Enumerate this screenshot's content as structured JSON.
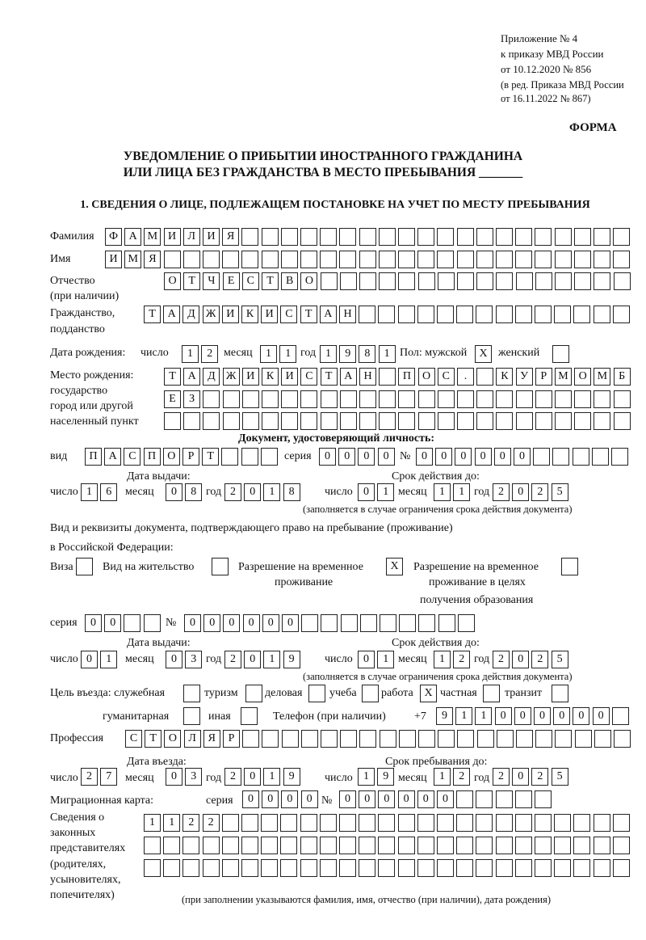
{
  "header": {
    "line1": "Приложение № 4",
    "line2": "к приказу МВД России",
    "line3": "от 10.12.2020 № 856",
    "line4": "(в ред. Приказа МВД России",
    "line5": "от 16.11.2022 № 867)",
    "forma": "ФОРМА"
  },
  "title": {
    "line1": "УВЕДОМЛЕНИЕ О ПРИБЫТИИ ИНОСТРАННОГО ГРАЖДАНИНА",
    "line2": "ИЛИ ЛИЦА БЕЗ ГРАЖДАНСТВА В МЕСТО ПРЕБЫВАНИЯ _______"
  },
  "section1": "1. СВЕДЕНИЯ О ЛИЦЕ, ПОДЛЕЖАЩЕМ ПОСТАНОВКЕ НА УЧЕТ ПО МЕСТУ ПРЕБЫВАНИЯ",
  "labels": {
    "surname": "Фамилия",
    "name": "Имя",
    "patronymic": "Отчество",
    "patronymic2": "(при наличии)",
    "citizenship": "Гражданство,",
    "citizenship2": "подданство",
    "birth_date": "Дата рождения:",
    "day": "число",
    "month": "месяц",
    "year": "год",
    "sex": "Пол: мужской",
    "female": "женский",
    "birthplace": "Место рождения:",
    "bp2": "государство",
    "bp3": "город или другой",
    "bp4": "населенный пункт",
    "id_doc": "Документ, удостоверяющий личность:",
    "kind": "вид",
    "series": "серия",
    "number": "№",
    "issue_date": "Дата выдачи:",
    "valid_until": "Срок действия до:",
    "valid_note": "(заполняется в случае ограничения срока действия документа)",
    "right_doc1": "Вид и реквизиты документа, подтверждающего право на пребывание (проживание)",
    "right_doc2": "в Российской Федерации:",
    "visa": "Виза",
    "residence": "Вид на жительство",
    "trp1": "Разрешение на временное",
    "trp2": "проживание",
    "trpe1": "Разрешение на временное",
    "trpe2": "проживание в целях",
    "trpe3": "получения образования",
    "purpose": "Цель въезда: служебная",
    "tourism": "туризм",
    "business": "деловая",
    "study": "учеба",
    "work": "работа",
    "private": "частная",
    "transit": "транзит",
    "humanitarian": "гуманитарная",
    "other": "иная",
    "phone": "Телефон (при наличии)",
    "phone_prefix": "+7",
    "profession": "Профессия",
    "entry_date": "Дата въезда:",
    "stay_until": "Срок пребывания до:",
    "migration_card": "Миграционная карта:",
    "rep1": "Сведения о",
    "rep2": "законных",
    "rep3": "представителях",
    "rep4": "(родителях,",
    "rep5": "усыновителях,",
    "rep6": "попечителях)",
    "rep_note": "(при заполнении указываются фамилия, имя, отчество (при наличии), дата рождения)"
  },
  "fields": {
    "surname": [
      "Ф",
      "А",
      "М",
      "И",
      "Л",
      "И",
      "Я",
      "",
      "",
      "",
      "",
      "",
      "",
      "",
      "",
      "",
      "",
      "",
      "",
      "",
      "",
      "",
      "",
      "",
      "",
      "",
      ""
    ],
    "name": [
      "И",
      "М",
      "Я",
      "",
      "",
      "",
      "",
      "",
      "",
      "",
      "",
      "",
      "",
      "",
      "",
      "",
      "",
      "",
      "",
      "",
      "",
      "",
      "",
      "",
      "",
      "",
      ""
    ],
    "patronymic": [
      "О",
      "Т",
      "Ч",
      "Е",
      "С",
      "Т",
      "В",
      "О",
      "",
      "",
      "",
      "",
      "",
      "",
      "",
      "",
      "",
      "",
      "",
      "",
      "",
      "",
      "",
      ""
    ],
    "citizenship": [
      "Т",
      "А",
      "Д",
      "Ж",
      "И",
      "К",
      "И",
      "С",
      "Т",
      "А",
      "Н",
      "",
      "",
      "",
      "",
      "",
      "",
      "",
      "",
      "",
      "",
      "",
      "",
      "",
      ""
    ],
    "birth_day": [
      "1",
      "2"
    ],
    "birth_month": [
      "1",
      "1"
    ],
    "birth_year": [
      "1",
      "9",
      "8",
      "1"
    ],
    "sex_male": [
      "X"
    ],
    "sex_female": [
      ""
    ],
    "birthplace1": [
      "Т",
      "А",
      "Д",
      "Ж",
      "И",
      "К",
      "И",
      "С",
      "Т",
      "А",
      "Н",
      "",
      "П",
      "О",
      "С",
      ".",
      "",
      "К",
      "У",
      "Р",
      "М",
      "О",
      "М",
      "Б"
    ],
    "birthplace2": [
      "Е",
      "З",
      "",
      "",
      "",
      "",
      "",
      "",
      "",
      "",
      "",
      "",
      "",
      "",
      "",
      "",
      "",
      "",
      "",
      "",
      "",
      "",
      "",
      ""
    ],
    "birthplace3": [
      "",
      "",
      "",
      "",
      "",
      "",
      "",
      "",
      "",
      "",
      "",
      "",
      "",
      "",
      "",
      "",
      "",
      "",
      "",
      "",
      "",
      "",
      "",
      ""
    ],
    "doc_kind": [
      "П",
      "А",
      "С",
      "П",
      "О",
      "Р",
      "Т",
      "",
      "",
      ""
    ],
    "doc_series": [
      "0",
      "0",
      "0",
      "0"
    ],
    "doc_number": [
      "0",
      "0",
      "0",
      "0",
      "0",
      "0",
      "",
      "",
      "",
      "",
      ""
    ],
    "doc_issue_day": [
      "1",
      "6"
    ],
    "doc_issue_month": [
      "0",
      "8"
    ],
    "doc_issue_year": [
      "2",
      "0",
      "1",
      "8"
    ],
    "doc_valid_day": [
      "0",
      "1"
    ],
    "doc_valid_month": [
      "1",
      "1"
    ],
    "doc_valid_year": [
      "2",
      "0",
      "2",
      "5"
    ],
    "visa": [
      ""
    ],
    "residence": [
      ""
    ],
    "trp": [
      "X"
    ],
    "trpe": [
      ""
    ],
    "right_series": [
      "0",
      "0",
      "",
      ""
    ],
    "right_number": [
      "0",
      "0",
      "0",
      "0",
      "0",
      "0",
      "",
      "",
      "",
      "",
      "",
      "",
      "",
      "",
      ""
    ],
    "right_issue_day": [
      "0",
      "1"
    ],
    "right_issue_month": [
      "0",
      "3"
    ],
    "right_issue_year": [
      "2",
      "0",
      "1",
      "9"
    ],
    "right_valid_day": [
      "0",
      "1"
    ],
    "right_valid_month": [
      "1",
      "2"
    ],
    "right_valid_year": [
      "2",
      "0",
      "2",
      "5"
    ],
    "p_service": [
      ""
    ],
    "p_tourism": [
      ""
    ],
    "p_business": [
      ""
    ],
    "p_study": [
      ""
    ],
    "p_work": [
      "X"
    ],
    "p_private": [
      ""
    ],
    "p_transit": [
      ""
    ],
    "p_humanitarian": [
      ""
    ],
    "p_other": [
      ""
    ],
    "phone": [
      "9",
      "1",
      "1",
      "0",
      "0",
      "0",
      "0",
      "0",
      "0",
      ""
    ],
    "profession": [
      "С",
      "Т",
      "О",
      "Л",
      "Я",
      "Р",
      "",
      "",
      "",
      "",
      "",
      "",
      "",
      "",
      "",
      "",
      "",
      "",
      "",
      "",
      "",
      "",
      "",
      "",
      "",
      ""
    ],
    "entry_day": [
      "2",
      "7"
    ],
    "entry_month": [
      "0",
      "3"
    ],
    "entry_year": [
      "2",
      "0",
      "1",
      "9"
    ],
    "stay_day": [
      "1",
      "9"
    ],
    "stay_month": [
      "1",
      "2"
    ],
    "stay_year": [
      "2",
      "0",
      "2",
      "5"
    ],
    "mc_series": [
      "0",
      "0",
      "0",
      "0"
    ],
    "mc_number": [
      "0",
      "0",
      "0",
      "0",
      "0",
      "0",
      "",
      "",
      "",
      "",
      ""
    ],
    "rep1": [
      "1",
      "1",
      "2",
      "2",
      "",
      "",
      "",
      "",
      "",
      "",
      "",
      "",
      "",
      "",
      "",
      "",
      "",
      "",
      "",
      "",
      "",
      "",
      "",
      "",
      ""
    ],
    "rep2": [
      "",
      "",
      "",
      "",
      "",
      "",
      "",
      "",
      "",
      "",
      "",
      "",
      "",
      "",
      "",
      "",
      "",
      "",
      "",
      "",
      "",
      "",
      "",
      "",
      ""
    ],
    "rep3": [
      "",
      "",
      "",
      "",
      "",
      "",
      "",
      "",
      "",
      "",
      "",
      "",
      "",
      "",
      "",
      "",
      "",
      "",
      "",
      "",
      "",
      "",
      "",
      "",
      ""
    ]
  }
}
